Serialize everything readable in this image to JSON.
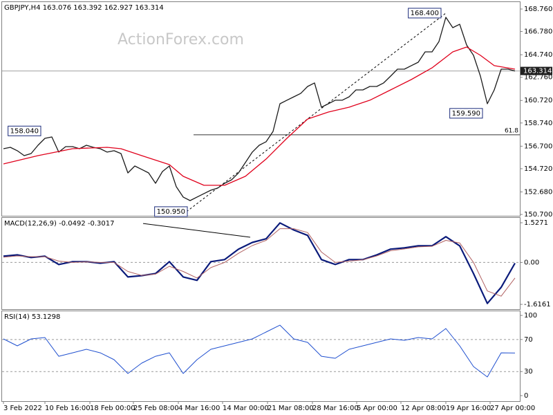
{
  "chart_data": [
    {
      "type": "line",
      "title": "GBPJPY,H4  163.076 163.392 162.927 163.314",
      "watermark": "ActionForex.com",
      "xlim": [
        -0.2,
        74.7
      ],
      "ylim": [
        150.58,
        169.37
      ],
      "yticks": [
        {
          "value": 168.76,
          "label": "168.760"
        },
        {
          "value": 166.78,
          "label": "166.780"
        },
        {
          "value": 164.74,
          "label": "164.740"
        },
        {
          "value": 162.76,
          "label": "162.760"
        },
        {
          "value": 160.72,
          "label": "160.720"
        },
        {
          "value": 158.74,
          "label": "158.740"
        },
        {
          "value": 156.7,
          "label": "156.700"
        },
        {
          "value": 154.72,
          "label": "154.720"
        },
        {
          "value": 152.68,
          "label": "152.680"
        },
        {
          "value": 150.7,
          "label": "150.700"
        }
      ],
      "series": [
        {
          "color": "#1a1a1a",
          "values": [
            156.48,
            156.6,
            156.3,
            155.87,
            156.05,
            156.78,
            157.39,
            157.51,
            156.18,
            156.66,
            156.66,
            156.48,
            156.78,
            156.6,
            156.48,
            156.18,
            156.3,
            156.05,
            154.35,
            154.96,
            154.66,
            154.35,
            153.44,
            154.47,
            154.96,
            153.14,
            152.23,
            151.92,
            152.23,
            152.53,
            152.83,
            153.02,
            153.44,
            153.74,
            154.35,
            155.26,
            156.18,
            156.78,
            157.09,
            158.0,
            160.43,
            160.74,
            161.04,
            161.34,
            161.95,
            162.26,
            160.13,
            160.43,
            160.74,
            160.74,
            161.04,
            161.65,
            161.65,
            161.95,
            161.95,
            162.26,
            162.86,
            163.47,
            163.47,
            163.78,
            164.08,
            164.99,
            164.99,
            165.9,
            168.03,
            167.12,
            167.42,
            165.6,
            164.69,
            162.86,
            160.43,
            161.65,
            163.47,
            163.47,
            163.314
          ]
        },
        {
          "color": "#e0001b",
          "x": [
            0,
            5,
            10,
            15,
            17,
            20,
            24,
            26,
            29,
            32,
            35,
            38,
            41,
            44,
            47,
            50,
            53,
            56,
            59,
            62,
            65,
            67,
            69,
            71,
            74
          ],
          "values": [
            155.14,
            155.87,
            156.48,
            156.6,
            156.48,
            155.87,
            155.08,
            154.05,
            153.26,
            153.26,
            154.05,
            155.57,
            157.39,
            159.09,
            159.7,
            160.13,
            160.74,
            161.65,
            162.56,
            163.59,
            164.99,
            165.42,
            164.69,
            163.78,
            163.47
          ]
        }
      ],
      "last_price": {
        "value": 163.314,
        "label": "163.314"
      },
      "trendlines": [
        {
          "x": [
            26.5,
            64
          ],
          "y": [
            150.95,
            168.4
          ],
          "dashed": true
        }
      ],
      "fib": {
        "value": 157.7,
        "label": "61.8",
        "x": 27.5
      },
      "annotations": [
        {
          "value": 168.4,
          "label": "168.400",
          "x": 63.6
        },
        {
          "value": 159.59,
          "label": "159.590",
          "x": 69.6
        },
        {
          "value": 150.95,
          "label": "150.950",
          "x": 26.9
        },
        {
          "value": 158.04,
          "label": "158.040",
          "x": 5.7
        }
      ]
    },
    {
      "type": "line",
      "title": "MACD(12,26,9) -0.0492 -0.3017",
      "xlim": [
        -0.2,
        74.7
      ],
      "ylim": [
        -1.801,
        1.715
      ],
      "yticks": [
        1.5271,
        {
          "value": 0,
          "label": "0.00"
        },
        -1.6161
      ],
      "levels": [
        0
      ],
      "series": [
        {
          "color": "#0a1a7a",
          "width": 2.2,
          "x": [
            0,
            2,
            4,
            6,
            8,
            10,
            12,
            14,
            16,
            18,
            20,
            22,
            24,
            26,
            28,
            30,
            32,
            34,
            36,
            38,
            40,
            42,
            44,
            46,
            48,
            50,
            52,
            54,
            56,
            58,
            60,
            62,
            64,
            66,
            68,
            70,
            72,
            74
          ],
          "values": [
            0.24,
            0.29,
            0.19,
            0.24,
            -0.08,
            0.03,
            0.03,
            -0.03,
            0.03,
            -0.56,
            -0.51,
            -0.43,
            0.03,
            -0.56,
            -0.69,
            0.03,
            0.11,
            0.51,
            0.77,
            0.91,
            1.52,
            1.25,
            1.04,
            0.11,
            -0.08,
            0.11,
            0.11,
            0.29,
            0.51,
            0.56,
            0.64,
            0.64,
            0.99,
            0.64,
            -0.43,
            -1.58,
            -0.96,
            -0.03
          ]
        },
        {
          "color": "#b06060",
          "width": 1,
          "x": [
            0,
            2,
            4,
            6,
            8,
            10,
            12,
            14,
            16,
            18,
            20,
            22,
            24,
            26,
            28,
            30,
            32,
            34,
            36,
            38,
            40,
            42,
            44,
            46,
            48,
            50,
            52,
            54,
            56,
            58,
            60,
            62,
            64,
            66,
            68,
            70,
            72,
            74
          ],
          "values": [
            0.2,
            0.25,
            0.22,
            0.22,
            0.05,
            0.0,
            0.02,
            0.0,
            0.0,
            -0.35,
            -0.5,
            -0.45,
            -0.15,
            -0.35,
            -0.6,
            -0.2,
            0.0,
            0.35,
            0.65,
            0.85,
            1.3,
            1.3,
            1.15,
            0.4,
            0.0,
            0.05,
            0.1,
            0.25,
            0.45,
            0.52,
            0.6,
            0.62,
            0.85,
            0.75,
            0.0,
            -1.1,
            -1.3,
            -0.6
          ]
        }
      ],
      "trendlines": [
        {
          "x": [
            20.2,
            35.7
          ],
          "y": [
            1.5,
            0.97
          ],
          "dashed": false
        }
      ]
    },
    {
      "type": "line",
      "title": "RSI(14) 53.1298",
      "xlim": [
        -0.2,
        74.7
      ],
      "ylim": [
        -6.9,
        105.2
      ],
      "yticks": [
        100,
        70,
        30,
        0
      ],
      "levels": [
        70,
        30
      ],
      "xticks": [
        {
          "value": 0,
          "label": "3 Feb 2022"
        },
        {
          "value": 6,
          "label": "10 Feb 16:00"
        },
        {
          "value": 12.5,
          "label": "18 Feb 00:00"
        },
        {
          "value": 18.8,
          "label": "25 Feb 08:00"
        },
        {
          "value": 25.3,
          "label": "4 Mar 16:00"
        },
        {
          "value": 31.7,
          "label": "14 Mar 00:00"
        },
        {
          "value": 38.2,
          "label": "21 Mar 08:00"
        },
        {
          "value": 44.7,
          "label": "28 Mar 16:00"
        },
        {
          "value": 51.1,
          "label": "5 Apr 00:00"
        },
        {
          "value": 57.5,
          "label": "12 Apr 08:00"
        },
        {
          "value": 64,
          "label": "19 Apr 16:00"
        },
        {
          "value": 70.4,
          "label": "27 Apr 00:00"
        }
      ],
      "series": [
        {
          "color": "#1f4fcf",
          "width": 1,
          "x": [
            0,
            2,
            4,
            6,
            8,
            10,
            12,
            14,
            16,
            18,
            20,
            22,
            24,
            26,
            28,
            30,
            32,
            34,
            36,
            38,
            40,
            42,
            44,
            46,
            48,
            50,
            52,
            54,
            56,
            58,
            60,
            62,
            64,
            66,
            68,
            70,
            72,
            74
          ],
          "values": [
            70.7,
            62.1,
            70.7,
            72.4,
            49.1,
            53.4,
            57.8,
            53.4,
            44.8,
            27.6,
            40.5,
            49.1,
            53.4,
            27.6,
            44.8,
            57.8,
            62.1,
            66.4,
            70.7,
            79.3,
            87.9,
            70.7,
            66.4,
            49.1,
            46.6,
            57.8,
            62.1,
            66.4,
            70.7,
            69.0,
            72.4,
            70.7,
            83.6,
            62.1,
            36.2,
            23.3,
            53.4,
            53.1298
          ]
        }
      ]
    }
  ]
}
